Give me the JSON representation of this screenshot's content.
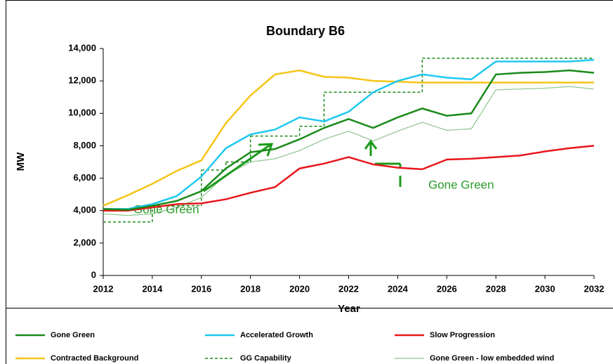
{
  "chart_data": {
    "type": "line",
    "title": "Boundary B6",
    "x_label": "Year",
    "y_label": "MW",
    "x": [
      2012,
      2013,
      2014,
      2015,
      2016,
      2017,
      2018,
      2019,
      2020,
      2021,
      2022,
      2023,
      2024,
      2025,
      2026,
      2027,
      2028,
      2029,
      2030,
      2031,
      2032
    ],
    "xlim": [
      2012,
      2032
    ],
    "xticks": [
      2012,
      2014,
      2016,
      2018,
      2020,
      2022,
      2024,
      2026,
      2028,
      2030,
      2032
    ],
    "ylim": [
      0,
      14000
    ],
    "yticks": [
      0,
      {
        "value": 2000,
        "label": "2,000"
      },
      {
        "value": 4000,
        "label": "4,000"
      },
      {
        "value": 6000,
        "label": "6,000"
      },
      {
        "value": 8000,
        "label": "8,000"
      },
      {
        "value": 10000,
        "label": "10,000"
      },
      {
        "value": 12000,
        "label": "12,000"
      },
      {
        "value": 14000,
        "label": "14,000"
      }
    ],
    "series": [
      {
        "name": "Gone Green",
        "color": "#1a8a1a",
        "style": "solid",
        "values": [
          4100,
          4050,
          4300,
          4600,
          5200,
          6600,
          7600,
          7800,
          8400,
          9100,
          9650,
          9100,
          9750,
          10300,
          9850,
          10000,
          12400,
          12500,
          12550,
          12650,
          12500
        ]
      },
      {
        "name": "Accelerated Growth",
        "color": "#1ec8f0",
        "style": "solid",
        "values": [
          4100,
          4100,
          4400,
          4900,
          6100,
          7850,
          8700,
          9000,
          9750,
          9500,
          10100,
          11300,
          12000,
          12400,
          12200,
          12100,
          13200,
          13200,
          13200,
          13200,
          13300
        ]
      },
      {
        "name": "Slow Progression",
        "color": "#e8161b",
        "style": "solid",
        "values": [
          4000,
          4000,
          4200,
          4400,
          4450,
          4700,
          5100,
          5450,
          6600,
          6900,
          7300,
          6850,
          6650,
          6550,
          7150,
          7200,
          7300,
          7400,
          7650,
          7850,
          8000
        ]
      },
      {
        "name": "Contracted Background",
        "color": "#f5c518",
        "style": "solid",
        "values": [
          4300,
          4950,
          5650,
          6450,
          7100,
          9400,
          11100,
          12400,
          12650,
          12250,
          12200,
          12000,
          11950,
          11900,
          11900,
          11900,
          11900,
          11900,
          11900,
          11900,
          11900
        ]
      },
      {
        "name": "GG Capability",
        "color": "#1a8a1a",
        "style": "step",
        "values": [
          3300,
          3300,
          4300,
          4300,
          6500,
          7000,
          8600,
          8600,
          9200,
          11300,
          11300,
          11300,
          11300,
          13400,
          13400,
          13400,
          13400,
          13400,
          13400,
          13400,
          13400
        ]
      },
      {
        "name": "Gone Green - low embedded wind",
        "color": "#1a8a1a",
        "style": "dotted",
        "values": [
          3800,
          3700,
          3800,
          4200,
          4800,
          6200,
          7000,
          7200,
          7700,
          8400,
          8900,
          8300,
          8900,
          9450,
          8950,
          9050,
          11450,
          11500,
          11550,
          11650,
          11500
        ]
      }
    ],
    "annotations": [
      "Gone Green",
      "Gone Green"
    ]
  }
}
